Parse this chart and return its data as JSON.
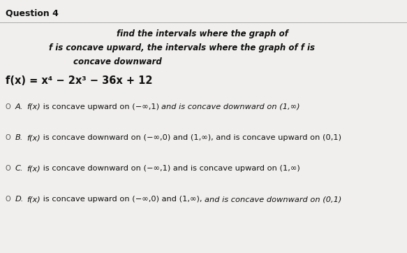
{
  "title": "Question 4",
  "bg_color": "#c8c8c8",
  "panel_color": "#f0efed",
  "title_color": "#111111",
  "line_color": "#aaaaaa",
  "instruction_line1": "find the intervals where the graph of",
  "instruction_line2": "f is concave upward, the intervals where the graph of f is",
  "instruction_line3": "concave downward",
  "function_text": "f(x) = x⁴ − 2x³ − 36x + 12",
  "options": [
    {
      "label": "A",
      "normal": "f(x) is concave upward on (−∞,1) ",
      "italic_end": "and is concave downward on (1,∞)",
      "italic_start": "f(x)",
      "normal_rest": " is concave upward on (−∞,1) "
    },
    {
      "label": "B",
      "italic_start": "f(x)",
      "normal_rest": " is concave downward on (−∞,0) and (1,∞), and is concave upward on (0,1)",
      "italic_end": ""
    },
    {
      "label": "C",
      "italic_start": "f(x)",
      "normal_rest": " is concave downward on (−∞,1) and is concave upward on (1,∞)",
      "italic_end": ""
    },
    {
      "label": "D",
      "italic_start": "f(x)",
      "normal_rest": " is concave upward on (−∞,0) and (1,∞), ",
      "italic_end": "and is concave downward on (0,1)"
    }
  ],
  "title_fontsize": 9,
  "instruction_fontsize": 8.5,
  "function_fontsize": 10.5,
  "option_fontsize": 8.2
}
